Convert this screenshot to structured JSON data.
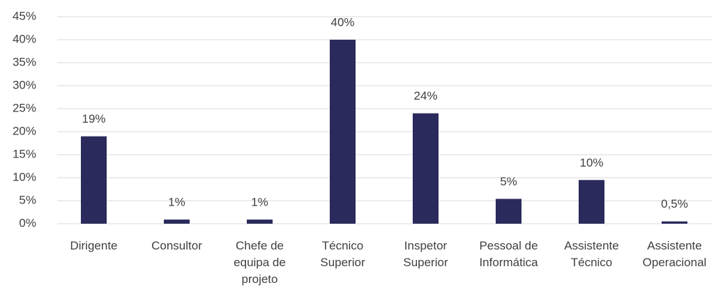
{
  "chart_data": {
    "type": "bar",
    "categories": [
      "Dirigente",
      "Consultor",
      "Chefe de equipa de projeto",
      "Técnico Superior",
      "Inspetor Superior",
      "Pessoal de Informática",
      "Assistente Técnico",
      "Assistente Operacional"
    ],
    "values": [
      19,
      0.9,
      0.9,
      40,
      24,
      5.4,
      9.5,
      0.5
    ],
    "value_labels": [
      "19%",
      "1%",
      "1%",
      "40%",
      "24%",
      "5%",
      "10%",
      "0,5%"
    ],
    "color": "#2b2a5c",
    "ylim": [
      0,
      45
    ],
    "yticks": [
      {
        "value": 0,
        "label": "0%"
      },
      {
        "value": 5,
        "label": "5%"
      },
      {
        "value": 10,
        "label": "10%"
      },
      {
        "value": 15,
        "label": "15%"
      },
      {
        "value": 20,
        "label": "20%"
      },
      {
        "value": 25,
        "label": "25%"
      },
      {
        "value": 30,
        "label": "30%"
      },
      {
        "value": 35,
        "label": "35%"
      },
      {
        "value": 40,
        "label": "40%"
      },
      {
        "value": 45,
        "label": "45%"
      }
    ],
    "grid": true
  }
}
